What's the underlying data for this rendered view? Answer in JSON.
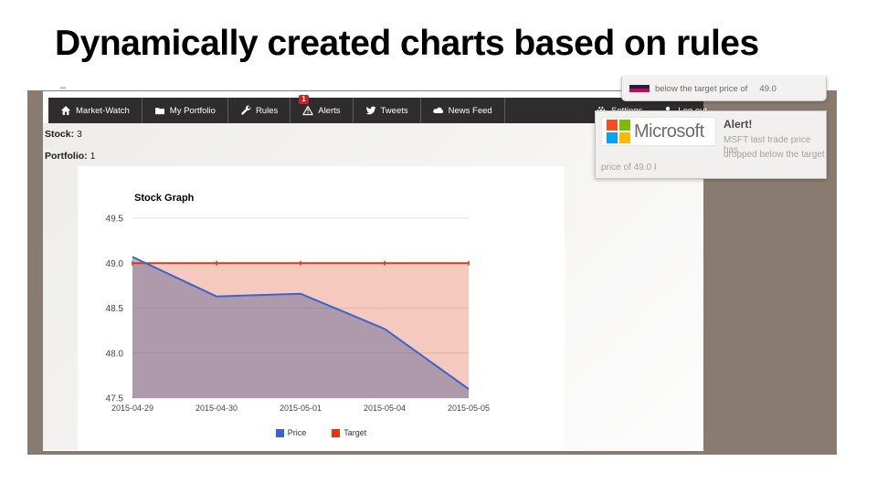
{
  "slide": {
    "title": "Dynamically created charts based on rules"
  },
  "window_dash": "–",
  "navbar": {
    "bg_color": "#2e2c2c",
    "badge_color": "#cb2027",
    "items": [
      {
        "label": "Market-Watch",
        "icon": "home-icon"
      },
      {
        "label": "My Portfolio",
        "icon": "folder-icon"
      },
      {
        "label": "Rules",
        "icon": "wrench-icon"
      },
      {
        "label": "Alerts",
        "icon": "warning-icon",
        "badge": "1"
      },
      {
        "label": "Tweets",
        "icon": "twitter-icon"
      },
      {
        "label": "News Feed",
        "icon": "cloud-icon"
      }
    ],
    "right_items": [
      {
        "label": "Settings",
        "icon": "gear-icon"
      },
      {
        "label": "Log out",
        "icon": "user-icon"
      }
    ]
  },
  "summary": {
    "stock_label": "Stock:",
    "stock_value": "3",
    "portfolio_label": "Portfolio:",
    "portfolio_value": "1"
  },
  "chart_data": {
    "type": "area",
    "title": "Stock Graph",
    "x": [
      "2015-04-29",
      "2015-04-30",
      "2015-05-01",
      "2015-05-04",
      "2015-05-05"
    ],
    "series": [
      {
        "name": "Price",
        "color": "#3b64c9",
        "fill": "rgba(58,78,140,0.38)",
        "values": [
          49.07,
          48.63,
          48.66,
          48.27,
          47.6
        ]
      },
      {
        "name": "Target",
        "color": "#dc3912",
        "fill": "rgba(220,57,18,0.27)",
        "values": [
          49.0,
          49.0,
          49.0,
          49.0,
          49.0
        ],
        "ticks": true
      }
    ],
    "ylim": [
      47.5,
      49.5
    ],
    "yticks": [
      47.5,
      48.0,
      48.5,
      49.0,
      49.5
    ],
    "grid": true,
    "legend_position": "bottom"
  },
  "toast_top": {
    "text": "below the target price of",
    "value": "49.0"
  },
  "alert": {
    "brand": "Microsoft",
    "logo_colors": [
      "#f25022",
      "#7fba00",
      "#00a4ef",
      "#ffb900"
    ],
    "title": "Alert!",
    "line1": "MSFT last trade price has",
    "line2": "dropped below the target",
    "line3": "price of 49.0 I"
  },
  "frame_color": "#8a7b70"
}
